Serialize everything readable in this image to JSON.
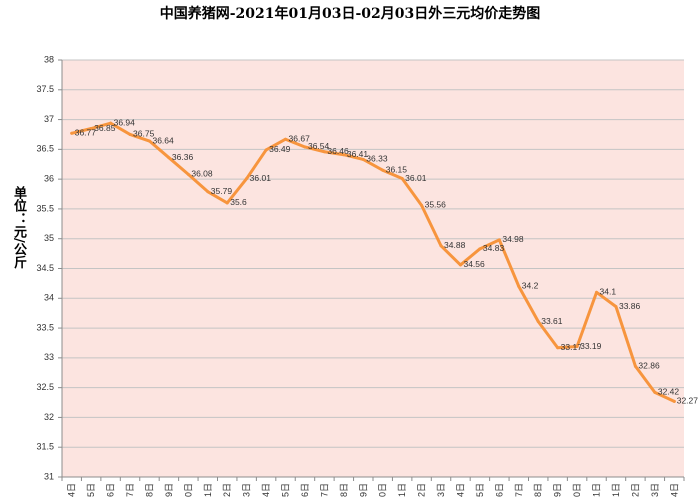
{
  "chart_data": {
    "type": "line",
    "title": "中国养猪网-2021年01月03日-02月03日外三元均价走势图",
    "xlabel": "",
    "ylabel": "单位：元/公斤",
    "ylim": [
      31,
      38
    ],
    "yticks": [
      "31",
      "31.5",
      "32",
      "32.5",
      "33",
      "33.5",
      "34",
      "34.5",
      "35",
      "35.5",
      "36",
      "36.5",
      "37",
      "37.5",
      "38"
    ],
    "categories": [
      "4日",
      "5日",
      "6日",
      "7日",
      "8日",
      "9日",
      "0日",
      "1日",
      "2日",
      "3日",
      "4日",
      "5日",
      "6日",
      "7日",
      "8日",
      "9日",
      "0日",
      "1日",
      "2日",
      "3日",
      "4日",
      "5日",
      "6日",
      "7日",
      "8日",
      "9日",
      "0日",
      "1日",
      "1日",
      "2日",
      "3日",
      "4日"
    ],
    "series": [
      {
        "values": [
          36.77,
          36.85,
          36.94,
          36.75,
          36.64,
          36.36,
          36.08,
          35.79,
          35.6,
          36.01,
          36.49,
          36.67,
          36.54,
          36.46,
          36.41,
          36.33,
          36.15,
          36.01,
          35.56,
          34.88,
          34.56,
          34.83,
          34.98,
          34.2,
          33.61,
          33.17,
          33.19,
          34.1,
          33.86,
          32.86,
          32.42,
          32.27
        ]
      }
    ],
    "data_labels": "right",
    "grid": "horizontal",
    "legend": "none",
    "colors": {
      "line": "#F7953E",
      "plot_background": "#FCE4E0",
      "grid": "#C4C4C4",
      "axis": "#8C8C8C",
      "label_text": "#333333"
    }
  }
}
